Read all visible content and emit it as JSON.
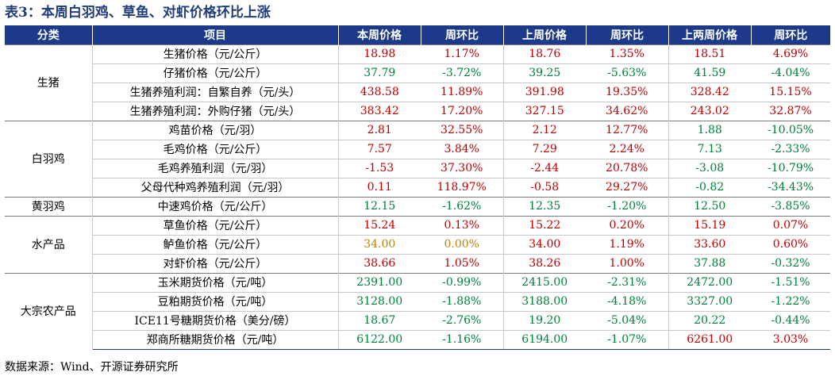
{
  "title": "表3：本周白羽鸡、草鱼、对虾价格环比上涨",
  "headers": [
    "分类",
    "项目",
    "本周价格",
    "周环比",
    "上周价格",
    "周环比",
    "上两周价格",
    "周环比"
  ],
  "groups": [
    {
      "category": "生猪",
      "rows": [
        {
          "item": "生猪价格（元/公斤）",
          "cells": [
            {
              "v": "18.98",
              "c": "red"
            },
            {
              "v": "1.17%",
              "c": "red"
            },
            {
              "v": "18.76",
              "c": "red"
            },
            {
              "v": "1.35%",
              "c": "red"
            },
            {
              "v": "18.51",
              "c": "red"
            },
            {
              "v": "4.69%",
              "c": "red"
            }
          ]
        },
        {
          "item": "仔猪价格（元/公斤）",
          "cells": [
            {
              "v": "37.79",
              "c": "green"
            },
            {
              "v": "-3.72%",
              "c": "green"
            },
            {
              "v": "39.25",
              "c": "green"
            },
            {
              "v": "-5.63%",
              "c": "green"
            },
            {
              "v": "41.59",
              "c": "green"
            },
            {
              "v": "-4.04%",
              "c": "green"
            }
          ]
        },
        {
          "item": "生猪养殖利润：自繁自养（元/头）",
          "cells": [
            {
              "v": "438.58",
              "c": "red"
            },
            {
              "v": "11.89%",
              "c": "red"
            },
            {
              "v": "391.98",
              "c": "red"
            },
            {
              "v": "19.35%",
              "c": "red"
            },
            {
              "v": "328.42",
              "c": "red"
            },
            {
              "v": "15.15%",
              "c": "red"
            }
          ]
        },
        {
          "item": "生猪养殖利润：外购仔猪（元/头）",
          "cells": [
            {
              "v": "383.42",
              "c": "red"
            },
            {
              "v": "17.20%",
              "c": "red"
            },
            {
              "v": "327.15",
              "c": "red"
            },
            {
              "v": "34.62%",
              "c": "red"
            },
            {
              "v": "243.02",
              "c": "red"
            },
            {
              "v": "32.87%",
              "c": "red"
            }
          ]
        }
      ]
    },
    {
      "category": "白羽鸡",
      "rows": [
        {
          "item": "鸡苗价格（元/羽）",
          "cells": [
            {
              "v": "2.81",
              "c": "red"
            },
            {
              "v": "32.55%",
              "c": "red"
            },
            {
              "v": "2.12",
              "c": "red"
            },
            {
              "v": "12.77%",
              "c": "red"
            },
            {
              "v": "1.88",
              "c": "green"
            },
            {
              "v": "-10.05%",
              "c": "green"
            }
          ]
        },
        {
          "item": "毛鸡价格（元/公斤）",
          "cells": [
            {
              "v": "7.57",
              "c": "red"
            },
            {
              "v": "3.84%",
              "c": "red"
            },
            {
              "v": "7.29",
              "c": "red"
            },
            {
              "v": "2.24%",
              "c": "red"
            },
            {
              "v": "7.13",
              "c": "green"
            },
            {
              "v": "-2.33%",
              "c": "green"
            }
          ]
        },
        {
          "item": "毛鸡养殖利润（元/羽）",
          "cells": [
            {
              "v": "-1.53",
              "c": "red"
            },
            {
              "v": "37.30%",
              "c": "red"
            },
            {
              "v": "-2.44",
              "c": "red"
            },
            {
              "v": "20.78%",
              "c": "red"
            },
            {
              "v": "-3.08",
              "c": "green"
            },
            {
              "v": "-10.79%",
              "c": "green"
            }
          ]
        },
        {
          "item": "父母代种鸡养殖利润（元/羽）",
          "cells": [
            {
              "v": "0.11",
              "c": "red"
            },
            {
              "v": "118.97%",
              "c": "red"
            },
            {
              "v": "-0.58",
              "c": "red"
            },
            {
              "v": "29.27%",
              "c": "red"
            },
            {
              "v": "-0.82",
              "c": "green"
            },
            {
              "v": "-34.43%",
              "c": "green"
            }
          ]
        }
      ]
    },
    {
      "category": "黄羽鸡",
      "rows": [
        {
          "item": "中速鸡价格（元/公斤）",
          "cells": [
            {
              "v": "12.15",
              "c": "green"
            },
            {
              "v": "-1.62%",
              "c": "green"
            },
            {
              "v": "12.35",
              "c": "green"
            },
            {
              "v": "-1.20%",
              "c": "green"
            },
            {
              "v": "12.50",
              "c": "green"
            },
            {
              "v": "-3.85%",
              "c": "green"
            }
          ]
        }
      ]
    },
    {
      "category": "水产品",
      "rows": [
        {
          "item": "草鱼价格（元/公斤）",
          "cells": [
            {
              "v": "15.24",
              "c": "red"
            },
            {
              "v": "0.13%",
              "c": "red"
            },
            {
              "v": "15.22",
              "c": "red"
            },
            {
              "v": "0.20%",
              "c": "red"
            },
            {
              "v": "15.19",
              "c": "red"
            },
            {
              "v": "0.07%",
              "c": "red"
            }
          ]
        },
        {
          "item": "鲈鱼价格（元/公斤）",
          "cells": [
            {
              "v": "34.00",
              "c": "brown"
            },
            {
              "v": "0.00%",
              "c": "brown"
            },
            {
              "v": "34.00",
              "c": "red"
            },
            {
              "v": "1.19%",
              "c": "red"
            },
            {
              "v": "33.60",
              "c": "red"
            },
            {
              "v": "0.60%",
              "c": "red"
            }
          ]
        },
        {
          "item": "对虾价格（元/公斤）",
          "cells": [
            {
              "v": "38.66",
              "c": "red"
            },
            {
              "v": "1.05%",
              "c": "red"
            },
            {
              "v": "38.26",
              "c": "red"
            },
            {
              "v": "1.00%",
              "c": "red"
            },
            {
              "v": "37.88",
              "c": "green"
            },
            {
              "v": "-0.32%",
              "c": "green"
            }
          ]
        }
      ]
    },
    {
      "category": "大宗农产品",
      "rows": [
        {
          "item": "玉米期货价格（元/吨）",
          "cells": [
            {
              "v": "2391.00",
              "c": "green"
            },
            {
              "v": "-0.99%",
              "c": "green"
            },
            {
              "v": "2415.00",
              "c": "green"
            },
            {
              "v": "-2.31%",
              "c": "green"
            },
            {
              "v": "2472.00",
              "c": "green"
            },
            {
              "v": "-1.51%",
              "c": "green"
            }
          ]
        },
        {
          "item": "豆粕期货价格（元/吨）",
          "cells": [
            {
              "v": "3128.00",
              "c": "green"
            },
            {
              "v": "-1.88%",
              "c": "green"
            },
            {
              "v": "3188.00",
              "c": "green"
            },
            {
              "v": "-4.18%",
              "c": "green"
            },
            {
              "v": "3327.00",
              "c": "green"
            },
            {
              "v": "-1.22%",
              "c": "green"
            }
          ]
        },
        {
          "item": "ICE11号糖期货价格（美分/磅）",
          "cells": [
            {
              "v": "18.67",
              "c": "green"
            },
            {
              "v": "-2.76%",
              "c": "green"
            },
            {
              "v": "19.20",
              "c": "green"
            },
            {
              "v": "-5.04%",
              "c": "green"
            },
            {
              "v": "20.22",
              "c": "green"
            },
            {
              "v": "-0.44%",
              "c": "green"
            }
          ]
        },
        {
          "item": "郑商所糖期货价格（元/吨）",
          "cells": [
            {
              "v": "6122.00",
              "c": "green"
            },
            {
              "v": "-1.16%",
              "c": "green"
            },
            {
              "v": "6194.00",
              "c": "green"
            },
            {
              "v": "-1.07%",
              "c": "green"
            },
            {
              "v": "6261.00",
              "c": "red"
            },
            {
              "v": "3.03%",
              "c": "red"
            }
          ]
        }
      ]
    }
  ],
  "source": "数据来源：Wind、开源证券研究所"
}
